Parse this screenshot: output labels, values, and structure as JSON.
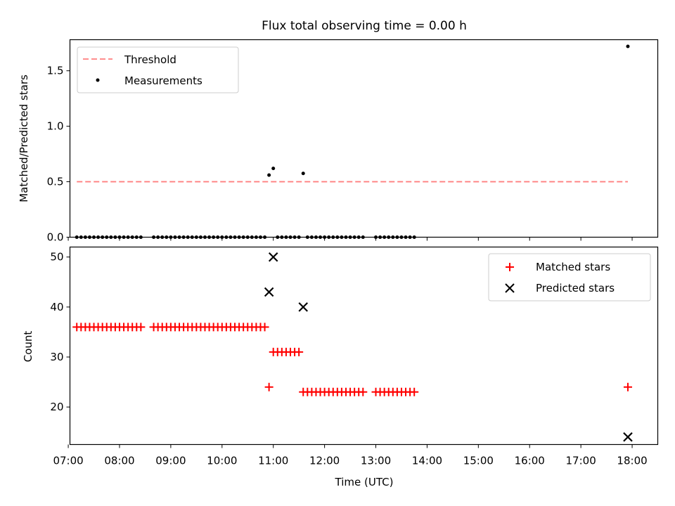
{
  "title": "Flux total observing time = 0.00 h",
  "colors": {
    "threshold": "#ff7f7f",
    "measurement": "#000000",
    "matched": "#ff0000",
    "predicted": "#000000"
  },
  "chart_data": [
    {
      "type": "scatter",
      "panel": "top",
      "ylabel": "Matched/Predicted stars",
      "xlim": [
        "07:02",
        "18:30"
      ],
      "ylim": [
        0,
        1.78
      ],
      "yticks": [
        "0.0",
        "0.5",
        "1.0",
        "1.5"
      ],
      "legend": {
        "placement": "top-left",
        "entries": [
          {
            "label": "Threshold",
            "marker": "dashed-line"
          },
          {
            "label": "Measurements",
            "marker": "dot"
          }
        ]
      },
      "threshold": {
        "value": 0.5,
        "x_start": "07:10",
        "x_end": "17:55"
      },
      "series": [
        {
          "name": "Measurements",
          "points": [
            [
              "07:10",
              0
            ],
            [
              "07:15",
              0
            ],
            [
              "07:20",
              0
            ],
            [
              "07:25",
              0
            ],
            [
              "07:30",
              0
            ],
            [
              "07:35",
              0
            ],
            [
              "07:40",
              0
            ],
            [
              "07:45",
              0
            ],
            [
              "07:50",
              0
            ],
            [
              "07:55",
              0
            ],
            [
              "08:00",
              0
            ],
            [
              "08:05",
              0
            ],
            [
              "08:10",
              0
            ],
            [
              "08:15",
              0
            ],
            [
              "08:20",
              0
            ],
            [
              "08:25",
              0
            ],
            [
              "08:40",
              0
            ],
            [
              "08:45",
              0
            ],
            [
              "08:50",
              0
            ],
            [
              "08:55",
              0
            ],
            [
              "09:00",
              0
            ],
            [
              "09:05",
              0
            ],
            [
              "09:10",
              0
            ],
            [
              "09:15",
              0
            ],
            [
              "09:20",
              0
            ],
            [
              "09:25",
              0
            ],
            [
              "09:30",
              0
            ],
            [
              "09:35",
              0
            ],
            [
              "09:40",
              0
            ],
            [
              "09:45",
              0
            ],
            [
              "09:50",
              0
            ],
            [
              "09:55",
              0
            ],
            [
              "10:00",
              0
            ],
            [
              "10:05",
              0
            ],
            [
              "10:10",
              0
            ],
            [
              "10:15",
              0
            ],
            [
              "10:20",
              0
            ],
            [
              "10:25",
              0
            ],
            [
              "10:30",
              0
            ],
            [
              "10:35",
              0
            ],
            [
              "10:40",
              0
            ],
            [
              "10:45",
              0
            ],
            [
              "10:50",
              0
            ],
            [
              "10:55",
              0.56
            ],
            [
              "11:00",
              0.62
            ],
            [
              "11:05",
              0
            ],
            [
              "11:10",
              0
            ],
            [
              "11:15",
              0
            ],
            [
              "11:20",
              0
            ],
            [
              "11:25",
              0
            ],
            [
              "11:30",
              0
            ],
            [
              "11:35",
              0.575
            ],
            [
              "11:40",
              0
            ],
            [
              "11:45",
              0
            ],
            [
              "11:50",
              0
            ],
            [
              "11:55",
              0
            ],
            [
              "12:00",
              0
            ],
            [
              "12:05",
              0
            ],
            [
              "12:10",
              0
            ],
            [
              "12:15",
              0
            ],
            [
              "12:20",
              0
            ],
            [
              "12:25",
              0
            ],
            [
              "12:30",
              0
            ],
            [
              "12:35",
              0
            ],
            [
              "12:40",
              0
            ],
            [
              "12:45",
              0
            ],
            [
              "13:00",
              0
            ],
            [
              "13:05",
              0
            ],
            [
              "13:10",
              0
            ],
            [
              "13:15",
              0
            ],
            [
              "13:20",
              0
            ],
            [
              "13:25",
              0
            ],
            [
              "13:30",
              0
            ],
            [
              "13:35",
              0
            ],
            [
              "13:40",
              0
            ],
            [
              "13:45",
              0
            ],
            [
              "17:55",
              1.72
            ]
          ]
        }
      ]
    },
    {
      "type": "scatter",
      "panel": "bottom",
      "xlabel": "Time (UTC)",
      "ylabel": "Count",
      "xlim": [
        "07:02",
        "18:30"
      ],
      "ylim": [
        12.5,
        52
      ],
      "xticks": [
        "07:00",
        "08:00",
        "09:00",
        "10:00",
        "11:00",
        "12:00",
        "13:00",
        "14:00",
        "15:00",
        "16:00",
        "17:00",
        "18:00"
      ],
      "yticks": [
        "20",
        "30",
        "40",
        "50"
      ],
      "legend": {
        "placement": "top-right",
        "entries": [
          {
            "label": "Matched stars",
            "marker": "plus"
          },
          {
            "label": "Predicted stars",
            "marker": "x"
          }
        ]
      },
      "series": [
        {
          "name": "Matched stars",
          "points": [
            [
              "07:10",
              36
            ],
            [
              "07:15",
              36
            ],
            [
              "07:20",
              36
            ],
            [
              "07:25",
              36
            ],
            [
              "07:30",
              36
            ],
            [
              "07:35",
              36
            ],
            [
              "07:40",
              36
            ],
            [
              "07:45",
              36
            ],
            [
              "07:50",
              36
            ],
            [
              "07:55",
              36
            ],
            [
              "08:00",
              36
            ],
            [
              "08:05",
              36
            ],
            [
              "08:10",
              36
            ],
            [
              "08:15",
              36
            ],
            [
              "08:20",
              36
            ],
            [
              "08:25",
              36
            ],
            [
              "08:40",
              36
            ],
            [
              "08:45",
              36
            ],
            [
              "08:50",
              36
            ],
            [
              "08:55",
              36
            ],
            [
              "09:00",
              36
            ],
            [
              "09:05",
              36
            ],
            [
              "09:10",
              36
            ],
            [
              "09:15",
              36
            ],
            [
              "09:20",
              36
            ],
            [
              "09:25",
              36
            ],
            [
              "09:30",
              36
            ],
            [
              "09:35",
              36
            ],
            [
              "09:40",
              36
            ],
            [
              "09:45",
              36
            ],
            [
              "09:50",
              36
            ],
            [
              "09:55",
              36
            ],
            [
              "10:00",
              36
            ],
            [
              "10:05",
              36
            ],
            [
              "10:10",
              36
            ],
            [
              "10:15",
              36
            ],
            [
              "10:20",
              36
            ],
            [
              "10:25",
              36
            ],
            [
              "10:30",
              36
            ],
            [
              "10:35",
              36
            ],
            [
              "10:40",
              36
            ],
            [
              "10:45",
              36
            ],
            [
              "10:50",
              36
            ],
            [
              "10:55",
              24
            ],
            [
              "11:00",
              31
            ],
            [
              "11:05",
              31
            ],
            [
              "11:10",
              31
            ],
            [
              "11:15",
              31
            ],
            [
              "11:20",
              31
            ],
            [
              "11:25",
              31
            ],
            [
              "11:30",
              31
            ],
            [
              "11:35",
              23
            ],
            [
              "11:40",
              23
            ],
            [
              "11:45",
              23
            ],
            [
              "11:50",
              23
            ],
            [
              "11:55",
              23
            ],
            [
              "12:00",
              23
            ],
            [
              "12:05",
              23
            ],
            [
              "12:10",
              23
            ],
            [
              "12:15",
              23
            ],
            [
              "12:20",
              23
            ],
            [
              "12:25",
              23
            ],
            [
              "12:30",
              23
            ],
            [
              "12:35",
              23
            ],
            [
              "12:40",
              23
            ],
            [
              "12:45",
              23
            ],
            [
              "13:00",
              23
            ],
            [
              "13:05",
              23
            ],
            [
              "13:10",
              23
            ],
            [
              "13:15",
              23
            ],
            [
              "13:20",
              23
            ],
            [
              "13:25",
              23
            ],
            [
              "13:30",
              23
            ],
            [
              "13:35",
              23
            ],
            [
              "13:40",
              23
            ],
            [
              "13:45",
              23
            ],
            [
              "17:55",
              24
            ]
          ]
        },
        {
          "name": "Predicted stars",
          "points": [
            [
              "10:55",
              43
            ],
            [
              "11:00",
              50
            ],
            [
              "11:35",
              40
            ],
            [
              "17:55",
              14
            ]
          ]
        }
      ]
    }
  ]
}
